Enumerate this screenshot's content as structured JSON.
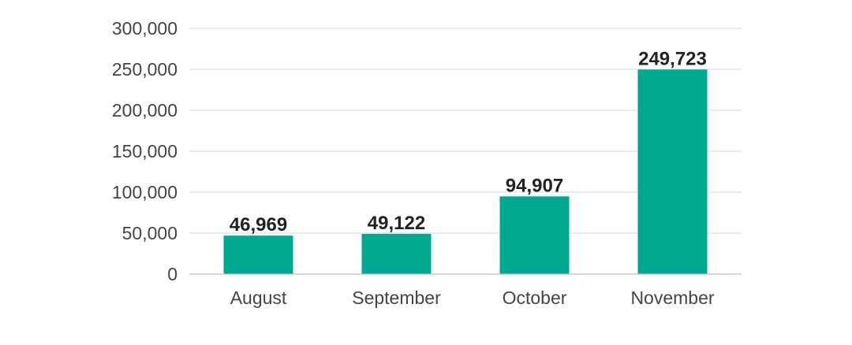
{
  "chart_data": {
    "type": "bar",
    "title": "",
    "xlabel": "",
    "ylabel": "",
    "categories": [
      "August",
      "September",
      "October",
      "November"
    ],
    "values": [
      46969,
      49122,
      94907,
      249723
    ],
    "data_labels": [
      "46,969",
      "49,122",
      "94,907",
      "249,723"
    ],
    "ylim": [
      0,
      300000
    ],
    "yticks": [
      0,
      50000,
      100000,
      150000,
      200000,
      250000,
      300000
    ],
    "ytick_labels": [
      "0",
      "50,000",
      "100,000",
      "150,000",
      "200,000",
      "250,000",
      "300,000"
    ],
    "grid": true,
    "legend": "none",
    "bar_color": "#00a88f"
  }
}
